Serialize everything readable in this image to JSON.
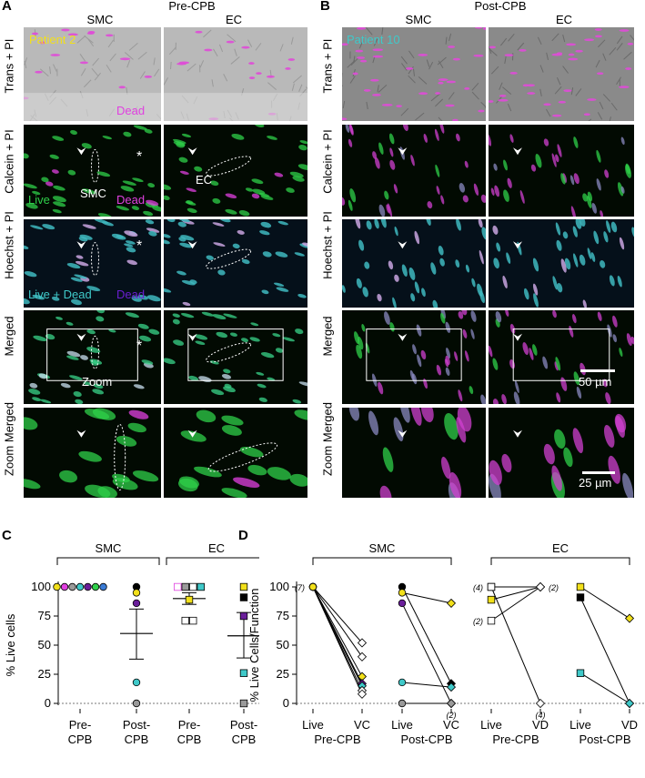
{
  "panels": {
    "A": {
      "letter": "A",
      "title": "Pre-CPB",
      "col1": "SMC",
      "col2": "EC"
    },
    "B": {
      "letter": "B",
      "title": "Post-CPB",
      "col1": "SMC",
      "col2": "EC"
    },
    "C": {
      "letter": "C"
    },
    "D": {
      "letter": "D"
    }
  },
  "row_labels": [
    "Trans + PI",
    "Calcein + PI",
    "Hoechst + PI",
    "Merged",
    "Zoom Merged"
  ],
  "overlays": {
    "patient2": "Patient 2",
    "patient10": "Patient 10",
    "dead": "Dead",
    "live": "Live",
    "dead2": "Dead",
    "smc": "SMC",
    "ec": "EC",
    "livedead": "Live + Dead",
    "dead3": "Dead",
    "zoom": "Zoom",
    "asterisk": "*",
    "scale50": "50 µm",
    "scale25": "25 µm"
  },
  "colors": {
    "green": "#2fd04a",
    "magenta": "#e040e0",
    "cyan": "#3fc9c9",
    "yellow": "#f2e01a",
    "purple": "#6a1e9a",
    "gray": "#9a9a9a",
    "black": "#000000"
  },
  "chart_data": [
    {
      "type": "scatter",
      "panel": "C",
      "ylabel": "% Live cells",
      "yticks": [
        0,
        25,
        50,
        75,
        100
      ],
      "ylim": [
        0,
        100
      ],
      "groups": [
        "SMC",
        "EC"
      ],
      "categories": [
        "Pre-CPB",
        "Post-CPB",
        "Pre-CPB",
        "Post-CPB"
      ],
      "category_lines": [
        [
          "Pre-",
          "CPB"
        ],
        [
          "Post-",
          "CPB"
        ],
        [
          "Pre-",
          "CPB"
        ],
        [
          "Post-",
          "CPB"
        ]
      ],
      "points": [
        {
          "cat": 0,
          "y": 100,
          "shape": "circle",
          "color": "#f2e01a"
        },
        {
          "cat": 0,
          "y": 100,
          "shape": "circle",
          "color": "#e040e0"
        },
        {
          "cat": 0,
          "y": 100,
          "shape": "circle",
          "color": "#9a9a9a"
        },
        {
          "cat": 0,
          "y": 100,
          "shape": "circle",
          "color": "#3fc9c9"
        },
        {
          "cat": 0,
          "y": 100,
          "shape": "circle",
          "color": "#6a1e9a"
        },
        {
          "cat": 0,
          "y": 100,
          "shape": "circle",
          "color": "#2fd04a"
        },
        {
          "cat": 0,
          "y": 100,
          "shape": "circle",
          "color": "#3a7bd5"
        },
        {
          "cat": 1,
          "y": 100,
          "shape": "circle",
          "color": "#000000"
        },
        {
          "cat": 1,
          "y": 95,
          "shape": "circle",
          "color": "#f2e01a"
        },
        {
          "cat": 1,
          "y": 86,
          "shape": "circle",
          "color": "#6a1e9a"
        },
        {
          "cat": 1,
          "y": 18,
          "shape": "circle",
          "color": "#3fc9c9"
        },
        {
          "cat": 1,
          "y": 0,
          "shape": "circle",
          "color": "#9a9a9a"
        },
        {
          "cat": 2,
          "y": 100,
          "shape": "square",
          "color": "#ffffff",
          "stroke": "#e040e0"
        },
        {
          "cat": 2,
          "y": 100,
          "shape": "square",
          "color": "#9a9a9a"
        },
        {
          "cat": 2,
          "y": 100,
          "shape": "square",
          "color": "#ffffff",
          "stroke": "#000000"
        },
        {
          "cat": 2,
          "y": 100,
          "shape": "square",
          "color": "#3fc9c9"
        },
        {
          "cat": 2,
          "y": 89,
          "shape": "square",
          "color": "#f2e01a"
        },
        {
          "cat": 2,
          "y": 71,
          "shape": "square",
          "color": "#ffffff",
          "stroke": "#000000"
        },
        {
          "cat": 2,
          "y": 71,
          "shape": "square",
          "color": "#ffffff",
          "stroke": "#000000"
        },
        {
          "cat": 3,
          "y": 100,
          "shape": "square",
          "color": "#f2e01a"
        },
        {
          "cat": 3,
          "y": 91,
          "shape": "square",
          "color": "#000000"
        },
        {
          "cat": 3,
          "y": 75,
          "shape": "square",
          "color": "#6a1e9a"
        },
        {
          "cat": 3,
          "y": 26,
          "shape": "square",
          "color": "#3fc9c9"
        },
        {
          "cat": 3,
          "y": 0,
          "shape": "square",
          "color": "#9a9a9a"
        }
      ],
      "means": [
        {
          "cat": 1,
          "mean": 60,
          "lo": 38,
          "hi": 81
        },
        {
          "cat": 2,
          "mean": 90,
          "lo": 85,
          "hi": 95
        },
        {
          "cat": 3,
          "mean": 58,
          "lo": 39,
          "hi": 78
        }
      ]
    },
    {
      "type": "line",
      "panel": "D",
      "ylabel": "% Live Cells/Function",
      "yticks": [
        0,
        25,
        50,
        75,
        100
      ],
      "ylim": [
        0,
        100
      ],
      "groups": [
        "SMC",
        "EC"
      ],
      "x_ticks": [
        "Live",
        "VC",
        "Live",
        "VC",
        "Live",
        "VD",
        "Live",
        "VD"
      ],
      "x_subgroups": [
        "Pre-CPB",
        "Post-CPB",
        "Pre-CPB",
        "Post-CPB"
      ],
      "count_labels": [
        {
          "pos": 0,
          "y": 100,
          "text": "(7)",
          "side": "left"
        },
        {
          "pos": 3,
          "y": 0,
          "text": "(2)",
          "side": "below"
        },
        {
          "pos": 4,
          "y": 100,
          "text": "(4)",
          "side": "left"
        },
        {
          "pos": 4,
          "y": 71,
          "text": "(2)",
          "side": "left"
        },
        {
          "pos": 5,
          "y": 100,
          "text": "(2)",
          "side": "right"
        },
        {
          "pos": 5,
          "y": 0,
          "text": "(4)",
          "side": "below"
        }
      ],
      "series": [
        {
          "x0": 0,
          "y0": 100,
          "x1": 1,
          "y1": 52,
          "c0": "#f2e01a",
          "s0": "circle",
          "c1": "#ffffff",
          "s1": "diamond"
        },
        {
          "x0": 0,
          "y0": 100,
          "x1": 1,
          "y1": 40,
          "c0": "#f2e01a",
          "s0": "circle",
          "c1": "#ffffff",
          "s1": "diamond"
        },
        {
          "x0": 0,
          "y0": 100,
          "x1": 1,
          "y1": 23,
          "c0": "#f2e01a",
          "s0": "circle",
          "c1": "#f2e01a",
          "s1": "diamond"
        },
        {
          "x0": 0,
          "y0": 100,
          "x1": 1,
          "y1": 17,
          "c0": "#f2e01a",
          "s0": "circle",
          "c1": "#6a1e9a",
          "s1": "diamond"
        },
        {
          "x0": 0,
          "y0": 100,
          "x1": 1,
          "y1": 15,
          "c0": "#f2e01a",
          "s0": "circle",
          "c1": "#3fc9c9",
          "s1": "diamond"
        },
        {
          "x0": 0,
          "y0": 100,
          "x1": 1,
          "y1": 11,
          "c0": "#f2e01a",
          "s0": "circle",
          "c1": "#ffffff",
          "s1": "diamond"
        },
        {
          "x0": 0,
          "y0": 100,
          "x1": 1,
          "y1": 8,
          "c0": "#f2e01a",
          "s0": "circle",
          "c1": "#ffffff",
          "s1": "diamond"
        },
        {
          "x0": 2,
          "y0": 100,
          "x1": 3,
          "y1": 17,
          "c0": "#000000",
          "s0": "circle",
          "c1": "#000000",
          "s1": "diamond"
        },
        {
          "x0": 2,
          "y0": 95,
          "x1": 3,
          "y1": 86,
          "c0": "#f2e01a",
          "s0": "circle",
          "c1": "#f2e01a",
          "s1": "diamond"
        },
        {
          "x0": 2,
          "y0": 86,
          "x1": 3,
          "y1": 0,
          "c0": "#6a1e9a",
          "s0": "circle",
          "c1": "#9a9a9a",
          "s1": "diamond"
        },
        {
          "x0": 2,
          "y0": 18,
          "x1": 3,
          "y1": 14,
          "c0": "#3fc9c9",
          "s0": "circle",
          "c1": "#3fc9c9",
          "s1": "diamond"
        },
        {
          "x0": 2,
          "y0": 0,
          "x1": 3,
          "y1": 0,
          "c0": "#9a9a9a",
          "s0": "circle",
          "c1": "#9a9a9a",
          "s1": "diamond"
        },
        {
          "x0": 4,
          "y0": 100,
          "x1": 5,
          "y1": 100,
          "c0": "#ffffff",
          "s0": "square",
          "c1": "#ffffff",
          "s1": "diamond"
        },
        {
          "x0": 4,
          "y0": 89,
          "x1": 5,
          "y1": 100,
          "c0": "#f2e01a",
          "s0": "square",
          "c1": "#f2e01a",
          "s1": "diamond"
        },
        {
          "x0": 4,
          "y0": 71,
          "x1": 5,
          "y1": 100,
          "c0": "#ffffff",
          "s0": "square",
          "c1": "#ffffff",
          "s1": "diamond"
        },
        {
          "x0": 4,
          "y0": 100,
          "x1": 5,
          "y1": 0,
          "c0": "#ffffff",
          "s0": "square",
          "c1": "#ffffff",
          "s1": "diamond"
        },
        {
          "x0": 6,
          "y0": 100,
          "x1": 7,
          "y1": 73,
          "c0": "#f2e01a",
          "s0": "square",
          "c1": "#f2e01a",
          "s1": "diamond"
        },
        {
          "x0": 6,
          "y0": 91,
          "x1": 7,
          "y1": 0,
          "c0": "#000000",
          "s0": "square",
          "c1": "#3fc9c9",
          "s1": "diamond"
        },
        {
          "x0": 6,
          "y0": 26,
          "x1": 7,
          "y1": 0,
          "c0": "#3fc9c9",
          "s0": "square",
          "c1": "#3fc9c9",
          "s1": "diamond"
        }
      ]
    }
  ]
}
